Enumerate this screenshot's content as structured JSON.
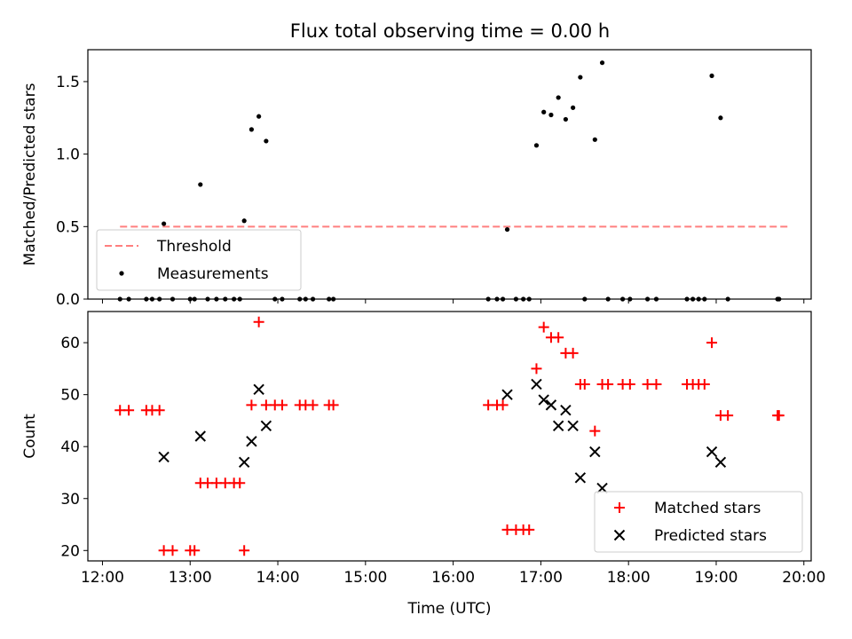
{
  "chart_data": [
    {
      "type": "scatter",
      "title": "Flux total observing time = 0.00 h",
      "xlabel": "",
      "ylabel": "Matched/Predicted stars",
      "xlim": [
        "11:50",
        "20:05"
      ],
      "ylim": [
        0,
        1.72
      ],
      "x_ticks": [
        "12:00",
        "13:00",
        "14:00",
        "15:00",
        "16:00",
        "17:00",
        "18:00",
        "19:00",
        "20:00"
      ],
      "y_ticks": [
        0.0,
        0.5,
        1.0,
        1.5
      ],
      "y_tick_labels": [
        "0.0",
        "0.5",
        "1.0",
        "1.5"
      ],
      "legend_position": "lower-left",
      "series": [
        {
          "name": "Threshold",
          "style": "dashed-line",
          "color": "#ff7f7f",
          "points": [
            [
              "12:12",
              0.5
            ],
            [
              "19:50",
              0.5
            ]
          ]
        },
        {
          "name": "Measurements",
          "style": "dot",
          "color": "#000000",
          "points": [
            [
              "12:12",
              0
            ],
            [
              "12:18",
              0
            ],
            [
              "12:30",
              0
            ],
            [
              "12:34",
              0
            ],
            [
              "12:39",
              0
            ],
            [
              "12:42",
              0.52
            ],
            [
              "12:48",
              0
            ],
            [
              "13:00",
              0
            ],
            [
              "13:03",
              0
            ],
            [
              "13:07",
              0.79
            ],
            [
              "13:12",
              0
            ],
            [
              "13:18",
              0
            ],
            [
              "13:24",
              0
            ],
            [
              "13:30",
              0
            ],
            [
              "13:34",
              0
            ],
            [
              "13:37",
              0.54
            ],
            [
              "13:42",
              1.17
            ],
            [
              "13:47",
              1.26
            ],
            [
              "13:52",
              1.09
            ],
            [
              "13:58",
              0
            ],
            [
              "14:03",
              0
            ],
            [
              "14:15",
              0
            ],
            [
              "14:19",
              0
            ],
            [
              "14:24",
              0
            ],
            [
              "14:35",
              0
            ],
            [
              "14:38",
              0
            ],
            [
              "16:24",
              0
            ],
            [
              "16:30",
              0
            ],
            [
              "16:34",
              0
            ],
            [
              "16:37",
              0.48
            ],
            [
              "16:43",
              0
            ],
            [
              "16:48",
              0
            ],
            [
              "16:52",
              0
            ],
            [
              "16:57",
              1.06
            ],
            [
              "17:02",
              1.29
            ],
            [
              "17:07",
              1.27
            ],
            [
              "17:12",
              1.39
            ],
            [
              "17:17",
              1.24
            ],
            [
              "17:22",
              1.32
            ],
            [
              "17:27",
              1.53
            ],
            [
              "17:30",
              0
            ],
            [
              "17:37",
              1.1
            ],
            [
              "17:42",
              1.63
            ],
            [
              "17:46",
              0
            ],
            [
              "17:56",
              0
            ],
            [
              "18:01",
              0
            ],
            [
              "18:13",
              0
            ],
            [
              "18:19",
              0
            ],
            [
              "18:40",
              0
            ],
            [
              "18:44",
              0
            ],
            [
              "18:48",
              0
            ],
            [
              "18:52",
              0
            ],
            [
              "18:57",
              1.54
            ],
            [
              "19:03",
              1.25
            ],
            [
              "19:08",
              0
            ],
            [
              "19:42",
              0
            ],
            [
              "19:43",
              0
            ]
          ]
        }
      ]
    },
    {
      "type": "scatter",
      "title": "",
      "xlabel": "Time (UTC)",
      "ylabel": "Count",
      "xlim": [
        "11:50",
        "20:05"
      ],
      "ylim": [
        18,
        66
      ],
      "x_ticks": [
        "12:00",
        "13:00",
        "14:00",
        "15:00",
        "16:00",
        "17:00",
        "18:00",
        "19:00",
        "20:00"
      ],
      "x_tick_labels": [
        "12:00",
        "13:00",
        "14:00",
        "15:00",
        "16:00",
        "17:00",
        "18:00",
        "19:00",
        "20:00"
      ],
      "y_ticks": [
        20,
        30,
        40,
        50,
        60
      ],
      "y_tick_labels": [
        "20",
        "30",
        "40",
        "50",
        "60"
      ],
      "legend_position": "lower-right",
      "series": [
        {
          "name": "Matched stars",
          "marker": "plus",
          "color": "#ff0000",
          "points": [
            [
              "12:12",
              47
            ],
            [
              "12:18",
              47
            ],
            [
              "12:30",
              47
            ],
            [
              "12:34",
              47
            ],
            [
              "12:39",
              47
            ],
            [
              "12:42",
              20
            ],
            [
              "12:48",
              20
            ],
            [
              "13:00",
              20
            ],
            [
              "13:03",
              20
            ],
            [
              "13:07",
              33
            ],
            [
              "13:12",
              33
            ],
            [
              "13:18",
              33
            ],
            [
              "13:24",
              33
            ],
            [
              "13:30",
              33
            ],
            [
              "13:34",
              33
            ],
            [
              "13:37",
              20
            ],
            [
              "13:42",
              48
            ],
            [
              "13:47",
              64
            ],
            [
              "13:52",
              48
            ],
            [
              "13:58",
              48
            ],
            [
              "14:03",
              48
            ],
            [
              "14:15",
              48
            ],
            [
              "14:19",
              48
            ],
            [
              "14:24",
              48
            ],
            [
              "14:35",
              48
            ],
            [
              "14:38",
              48
            ],
            [
              "16:24",
              48
            ],
            [
              "16:30",
              48
            ],
            [
              "16:34",
              48
            ],
            [
              "16:37",
              24
            ],
            [
              "16:43",
              24
            ],
            [
              "16:48",
              24
            ],
            [
              "16:52",
              24
            ],
            [
              "16:57",
              55
            ],
            [
              "17:02",
              63
            ],
            [
              "17:07",
              61
            ],
            [
              "17:12",
              61
            ],
            [
              "17:17",
              58
            ],
            [
              "17:22",
              58
            ],
            [
              "17:27",
              52
            ],
            [
              "17:30",
              52
            ],
            [
              "17:37",
              43
            ],
            [
              "17:42",
              52
            ],
            [
              "17:46",
              52
            ],
            [
              "17:56",
              52
            ],
            [
              "18:01",
              52
            ],
            [
              "18:13",
              52
            ],
            [
              "18:19",
              52
            ],
            [
              "18:40",
              52
            ],
            [
              "18:44",
              52
            ],
            [
              "18:48",
              52
            ],
            [
              "18:52",
              52
            ],
            [
              "18:57",
              60
            ],
            [
              "19:03",
              46
            ],
            [
              "19:08",
              46
            ],
            [
              "19:42",
              46
            ],
            [
              "19:43",
              46
            ]
          ]
        },
        {
          "name": "Predicted stars",
          "marker": "x",
          "color": "#000000",
          "points": [
            [
              "12:42",
              38
            ],
            [
              "13:07",
              42
            ],
            [
              "13:37",
              37
            ],
            [
              "13:42",
              41
            ],
            [
              "13:47",
              51
            ],
            [
              "13:52",
              44
            ],
            [
              "16:37",
              50
            ],
            [
              "16:57",
              52
            ],
            [
              "17:02",
              49
            ],
            [
              "17:07",
              48
            ],
            [
              "17:12",
              44
            ],
            [
              "17:17",
              47
            ],
            [
              "17:22",
              44
            ],
            [
              "17:27",
              34
            ],
            [
              "17:37",
              39
            ],
            [
              "17:42",
              32
            ],
            [
              "18:57",
              39
            ],
            [
              "19:03",
              37
            ]
          ]
        }
      ]
    }
  ]
}
